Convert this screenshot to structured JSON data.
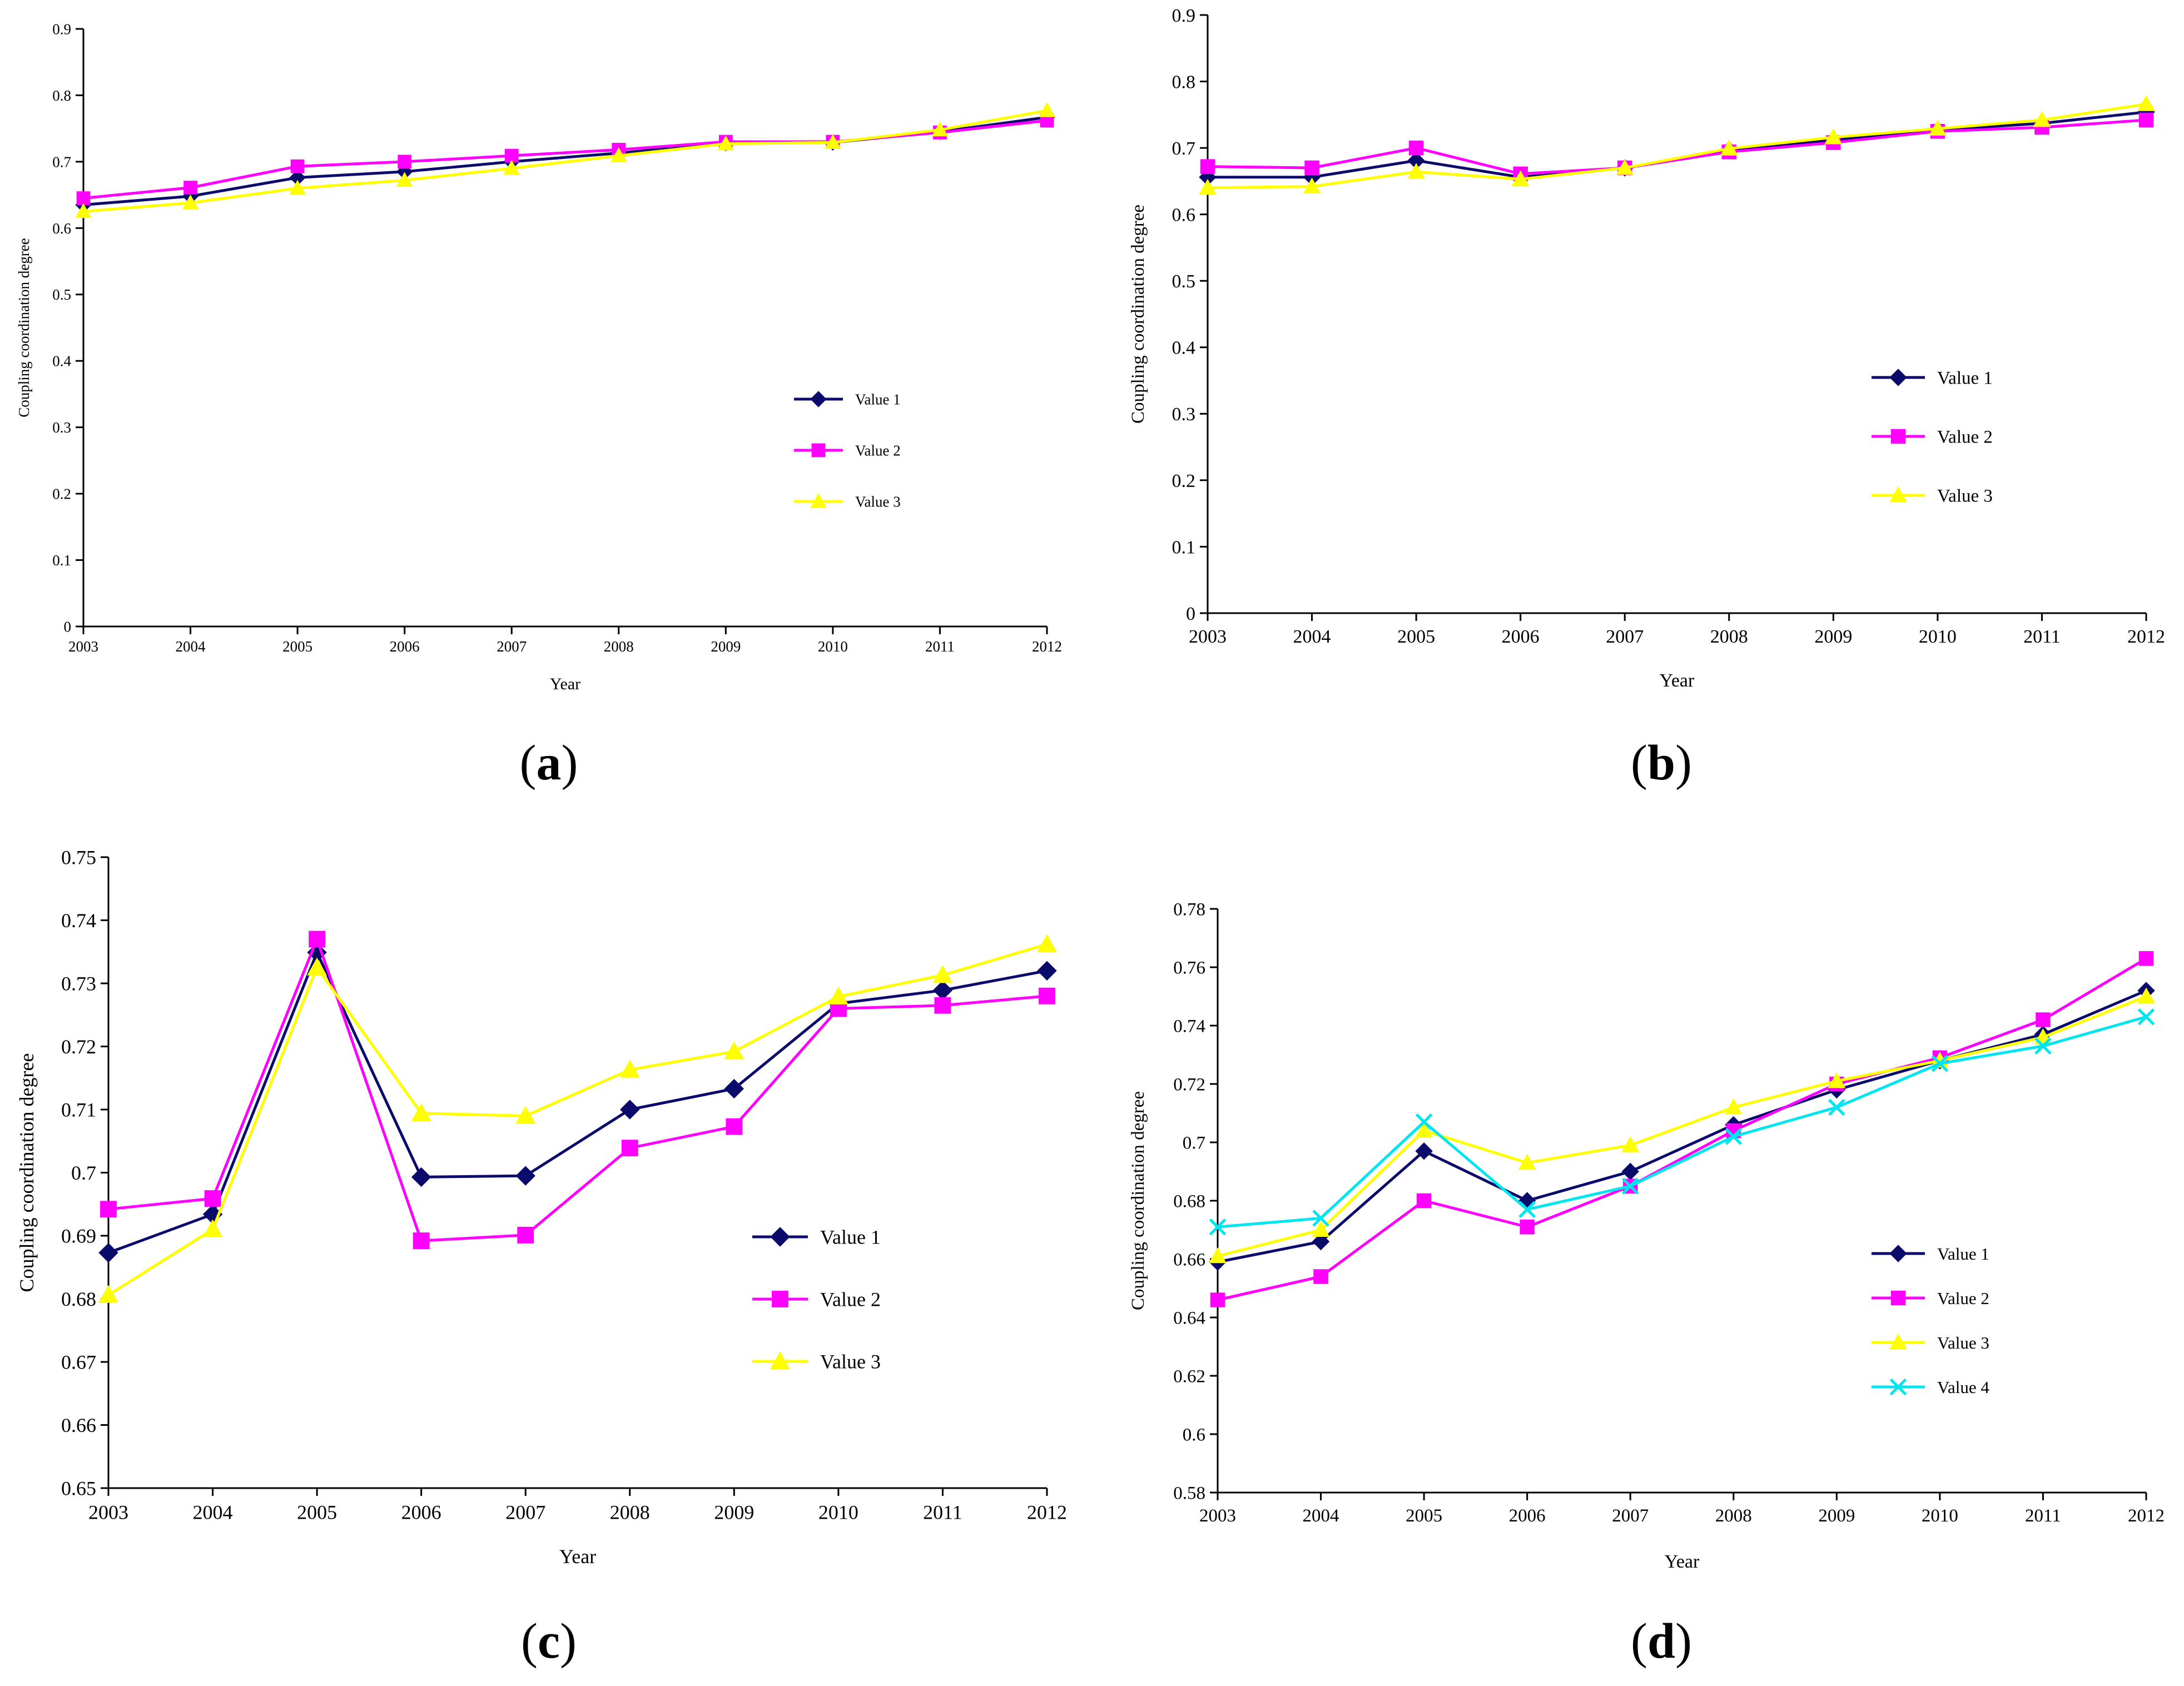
{
  "colors": {
    "value1": "#0b0b6b",
    "value2": "#ff00ff",
    "value3": "#ffff00",
    "value4": "#00e5ee"
  },
  "chart_data": [
    {
      "type": "line",
      "panel": "a",
      "panel_label": "a",
      "xlabel": "Year",
      "ylabel": "Coupling coordination degree",
      "categories": [
        "2003",
        "2004",
        "2005",
        "2006",
        "2007",
        "2008",
        "2009",
        "2010",
        "2011",
        "2012"
      ],
      "ylim": [
        0,
        0.9
      ],
      "yticks": [
        0,
        0.1,
        0.2,
        0.3,
        0.4,
        0.5,
        0.6,
        0.7,
        0.8,
        0.9
      ],
      "ytick_labels": [
        "0",
        "0.1",
        "0.2",
        "0.3",
        "0.4",
        "0.5",
        "0.6",
        "0.7",
        "0.8",
        "0.9"
      ],
      "legend_position": "center-right",
      "series": [
        {
          "name": "Value 1",
          "marker": "diamond",
          "values": [
            0.635,
            0.648,
            0.676,
            0.685,
            0.7,
            0.713,
            0.728,
            0.729,
            0.745,
            0.767
          ]
        },
        {
          "name": "Value 2",
          "marker": "square",
          "values": [
            0.645,
            0.661,
            0.693,
            0.7,
            0.709,
            0.718,
            0.73,
            0.73,
            0.744,
            0.762
          ]
        },
        {
          "name": "Value 3",
          "marker": "triangle",
          "values": [
            0.625,
            0.638,
            0.66,
            0.672,
            0.69,
            0.709,
            0.727,
            0.729,
            0.748,
            0.777
          ]
        }
      ]
    },
    {
      "type": "line",
      "panel": "b",
      "panel_label": "b",
      "xlabel": "Year",
      "ylabel": "Coupling coordination degree",
      "categories": [
        "2003",
        "2004",
        "2005",
        "2006",
        "2007",
        "2008",
        "2009",
        "2010",
        "2011",
        "2012"
      ],
      "ylim": [
        0,
        0.9
      ],
      "yticks": [
        0,
        0.1,
        0.2,
        0.3,
        0.4,
        0.5,
        0.6,
        0.7,
        0.8,
        0.9
      ],
      "ytick_labels": [
        "0",
        "0.1",
        "0.2",
        "0.3",
        "0.4",
        "0.5",
        "0.6",
        "0.7",
        "0.8",
        "0.9"
      ],
      "legend_position": "center-right",
      "series": [
        {
          "name": "Value 1",
          "marker": "diamond",
          "values": [
            0.656,
            0.656,
            0.681,
            0.656,
            0.67,
            0.697,
            0.712,
            0.727,
            0.737,
            0.754
          ]
        },
        {
          "name": "Value 2",
          "marker": "square",
          "values": [
            0.672,
            0.67,
            0.7,
            0.661,
            0.67,
            0.694,
            0.708,
            0.725,
            0.731,
            0.742
          ]
        },
        {
          "name": "Value 3",
          "marker": "triangle",
          "values": [
            0.64,
            0.642,
            0.664,
            0.653,
            0.67,
            0.699,
            0.716,
            0.729,
            0.742,
            0.766
          ]
        }
      ]
    },
    {
      "type": "line",
      "panel": "c",
      "panel_label": "c",
      "xlabel": "Year",
      "ylabel": "Coupling coordination degree",
      "categories": [
        "2003",
        "2004",
        "2005",
        "2006",
        "2007",
        "2008",
        "2009",
        "2010",
        "2011",
        "2012"
      ],
      "ylim": [
        0.65,
        0.75
      ],
      "yticks": [
        0.65,
        0.66,
        0.67,
        0.68,
        0.69,
        0.7,
        0.71,
        0.72,
        0.73,
        0.74,
        0.75
      ],
      "ytick_labels": [
        "0.65",
        "0.66",
        "0.67",
        "0.68",
        "0.69",
        "0.7",
        "0.71",
        "0.72",
        "0.73",
        "0.74",
        "0.75"
      ],
      "legend_position": "center-right",
      "series": [
        {
          "name": "Value 1",
          "marker": "diamond",
          "values": [
            0.6873,
            0.6934,
            0.7349,
            0.6993,
            0.6995,
            0.71,
            0.7133,
            0.7268,
            0.7289,
            0.732
          ]
        },
        {
          "name": "Value 2",
          "marker": "square",
          "values": [
            0.6942,
            0.6959,
            0.737,
            0.6892,
            0.6901,
            0.7039,
            0.7073,
            0.726,
            0.7265,
            0.728
          ]
        },
        {
          "name": "Value 3",
          "marker": "triangle",
          "values": [
            0.6806,
            0.691,
            0.7325,
            0.7094,
            0.709,
            0.7163,
            0.7192,
            0.7279,
            0.7313,
            0.7362
          ]
        }
      ]
    },
    {
      "type": "line",
      "panel": "d",
      "panel_label": "d",
      "xlabel": "Year",
      "ylabel": "Coupling coordination degree",
      "categories": [
        "2003",
        "2004",
        "2005",
        "2006",
        "2007",
        "2008",
        "2009",
        "2010",
        "2011",
        "2012"
      ],
      "ylim": [
        0.58,
        0.78
      ],
      "yticks": [
        0.58,
        0.6,
        0.62,
        0.64,
        0.66,
        0.68,
        0.7,
        0.72,
        0.74,
        0.76,
        0.78
      ],
      "ytick_labels": [
        "0.58",
        "0.6",
        "0.62",
        "0.64",
        "0.66",
        "0.68",
        "0.7",
        "0.72",
        "0.74",
        "0.76",
        "0.78"
      ],
      "legend_position": "center-right",
      "series": [
        {
          "name": "Value 1",
          "marker": "diamond",
          "values": [
            0.659,
            0.666,
            0.697,
            0.68,
            0.69,
            0.706,
            0.718,
            0.728,
            0.737,
            0.752
          ]
        },
        {
          "name": "Value 2",
          "marker": "square",
          "values": [
            0.646,
            0.654,
            0.68,
            0.671,
            0.685,
            0.704,
            0.72,
            0.729,
            0.742,
            0.763
          ]
        },
        {
          "name": "Value 3",
          "marker": "triangle",
          "values": [
            0.661,
            0.67,
            0.704,
            0.693,
            0.699,
            0.712,
            0.721,
            0.728,
            0.736,
            0.75
          ]
        },
        {
          "name": "Value 4",
          "marker": "x",
          "values": [
            0.671,
            0.674,
            0.707,
            0.677,
            0.685,
            0.702,
            0.712,
            0.727,
            0.733,
            0.743
          ]
        }
      ]
    }
  ]
}
